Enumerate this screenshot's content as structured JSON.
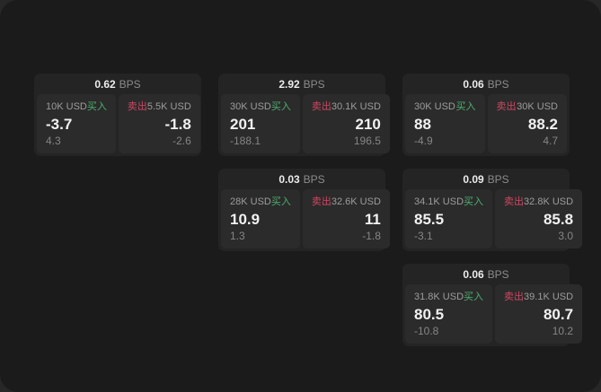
{
  "app": {
    "unit_label": "BPS",
    "buy_label": "买入",
    "sell_label": "卖出"
  },
  "colors": {
    "buy": "#4caf6e",
    "sell": "#cd4760",
    "surface": "#1b1b1b",
    "backdrop": "#272727",
    "card": "#242424",
    "panel": "#2b2b2b"
  },
  "cards": [
    {
      "bps": "0.62",
      "buy": {
        "amount": "10K USD",
        "value": "-3.7",
        "sub": "4.3"
      },
      "sell": {
        "amount": "5.5K USD",
        "value": "-1.8",
        "sub": "-2.6"
      }
    },
    {
      "bps": "2.92",
      "buy": {
        "amount": "30K USD",
        "value": "201",
        "sub": "-188.1"
      },
      "sell": {
        "amount": "30.1K USD",
        "value": "210",
        "sub": "196.5"
      }
    },
    {
      "bps": "0.06",
      "buy": {
        "amount": "30K USD",
        "value": "88",
        "sub": "-4.9"
      },
      "sell": {
        "amount": "30K USD",
        "value": "88.2",
        "sub": "4.7"
      }
    },
    {
      "bps": "0.03",
      "buy": {
        "amount": "28K USD",
        "value": "10.9",
        "sub": "1.3"
      },
      "sell": {
        "amount": "32.6K USD",
        "value": "11",
        "sub": "-1.8"
      }
    },
    {
      "bps": "0.09",
      "buy": {
        "amount": "34.1K USD",
        "value": "85.5",
        "sub": "-3.1"
      },
      "sell": {
        "amount": "32.8K USD",
        "value": "85.8",
        "sub": "3.0"
      }
    },
    {
      "bps": "0.06",
      "buy": {
        "amount": "31.8K USD",
        "value": "80.5",
        "sub": "-10.8"
      },
      "sell": {
        "amount": "39.1K USD",
        "value": "80.7",
        "sub": "10.2"
      }
    }
  ]
}
